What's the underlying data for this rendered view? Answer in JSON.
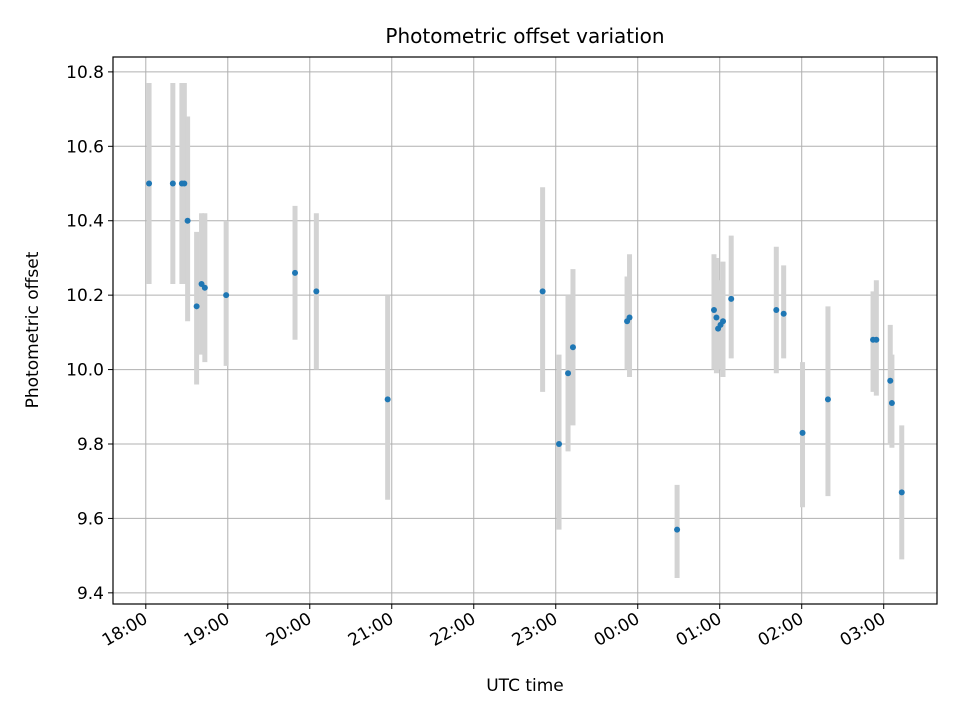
{
  "chart_data": {
    "type": "scatter",
    "title": "Photometric offset variation",
    "xlabel": "UTC time",
    "ylabel": "Photometric offset",
    "x_unit": "hours (UTC), values >= 24 are after midnight",
    "x_ticks": [
      {
        "value": 18,
        "label": "18:00"
      },
      {
        "value": 19,
        "label": "19:00"
      },
      {
        "value": 20,
        "label": "20:00"
      },
      {
        "value": 21,
        "label": "21:00"
      },
      {
        "value": 22,
        "label": "22:00"
      },
      {
        "value": 23,
        "label": "23:00"
      },
      {
        "value": 24,
        "label": "00:00"
      },
      {
        "value": 25,
        "label": "01:00"
      },
      {
        "value": 26,
        "label": "02:00"
      },
      {
        "value": 27,
        "label": "03:00"
      }
    ],
    "y_ticks": [
      {
        "value": 9.4,
        "label": "9.4"
      },
      {
        "value": 9.6,
        "label": "9.6"
      },
      {
        "value": 9.8,
        "label": "9.8"
      },
      {
        "value": 10.0,
        "label": "10.0"
      },
      {
        "value": 10.2,
        "label": "10.2"
      },
      {
        "value": 10.4,
        "label": "10.4"
      },
      {
        "value": 10.6,
        "label": "10.6"
      },
      {
        "value": 10.8,
        "label": "10.8"
      }
    ],
    "xlim": [
      17.6,
      27.65
    ],
    "ylim": [
      9.37,
      10.84
    ],
    "grid": true,
    "marker_color": "#1f77b4",
    "errorbar_color": "#d3d3d3",
    "series": [
      {
        "points": [
          {
            "x": 18.04,
            "y": 10.5,
            "lo": 10.23,
            "hi": 10.77
          },
          {
            "x": 18.33,
            "y": 10.5,
            "lo": 10.23,
            "hi": 10.77
          },
          {
            "x": 18.44,
            "y": 10.5,
            "lo": 10.23,
            "hi": 10.77
          },
          {
            "x": 18.47,
            "y": 10.5,
            "lo": 10.23,
            "hi": 10.77
          },
          {
            "x": 18.51,
            "y": 10.4,
            "lo": 10.13,
            "hi": 10.68
          },
          {
            "x": 18.62,
            "y": 10.17,
            "lo": 9.96,
            "hi": 10.37
          },
          {
            "x": 18.68,
            "y": 10.23,
            "lo": 10.04,
            "hi": 10.42
          },
          {
            "x": 18.72,
            "y": 10.22,
            "lo": 10.02,
            "hi": 10.42
          },
          {
            "x": 18.98,
            "y": 10.2,
            "lo": 10.01,
            "hi": 10.4
          },
          {
            "x": 19.82,
            "y": 10.26,
            "lo": 10.08,
            "hi": 10.44
          },
          {
            "x": 20.08,
            "y": 10.21,
            "lo": 10.0,
            "hi": 10.42
          },
          {
            "x": 20.95,
            "y": 9.92,
            "lo": 9.65,
            "hi": 10.2
          },
          {
            "x": 22.84,
            "y": 10.21,
            "lo": 9.94,
            "hi": 10.49
          },
          {
            "x": 23.04,
            "y": 9.8,
            "lo": 9.57,
            "hi": 10.04
          },
          {
            "x": 23.15,
            "y": 9.99,
            "lo": 9.78,
            "hi": 10.2
          },
          {
            "x": 23.21,
            "y": 10.06,
            "lo": 9.85,
            "hi": 10.27
          },
          {
            "x": 23.87,
            "y": 10.13,
            "lo": 10.0,
            "hi": 10.25
          },
          {
            "x": 23.9,
            "y": 10.14,
            "lo": 9.98,
            "hi": 10.31
          },
          {
            "x": 24.48,
            "y": 9.57,
            "lo": 9.44,
            "hi": 9.69
          },
          {
            "x": 24.93,
            "y": 10.16,
            "lo": 10.0,
            "hi": 10.31
          },
          {
            "x": 24.96,
            "y": 10.14,
            "lo": 9.99,
            "hi": 10.3
          },
          {
            "x": 24.98,
            "y": 10.11,
            "lo": 10.0,
            "hi": 10.23
          },
          {
            "x": 25.01,
            "y": 10.12,
            "lo": 10.0,
            "hi": 10.24
          },
          {
            "x": 25.04,
            "y": 10.13,
            "lo": 9.98,
            "hi": 10.29
          },
          {
            "x": 25.14,
            "y": 10.19,
            "lo": 10.03,
            "hi": 10.36
          },
          {
            "x": 25.69,
            "y": 10.16,
            "lo": 9.99,
            "hi": 10.33
          },
          {
            "x": 25.78,
            "y": 10.15,
            "lo": 10.03,
            "hi": 10.28
          },
          {
            "x": 26.01,
            "y": 9.83,
            "lo": 9.63,
            "hi": 10.02
          },
          {
            "x": 26.32,
            "y": 9.92,
            "lo": 9.66,
            "hi": 10.17
          },
          {
            "x": 26.87,
            "y": 10.08,
            "lo": 9.94,
            "hi": 10.21
          },
          {
            "x": 26.91,
            "y": 10.08,
            "lo": 9.93,
            "hi": 10.24
          },
          {
            "x": 27.08,
            "y": 9.97,
            "lo": 9.8,
            "hi": 10.12
          },
          {
            "x": 27.1,
            "y": 9.91,
            "lo": 9.79,
            "hi": 10.04
          },
          {
            "x": 27.22,
            "y": 9.67,
            "lo": 9.49,
            "hi": 9.85
          }
        ]
      }
    ]
  }
}
